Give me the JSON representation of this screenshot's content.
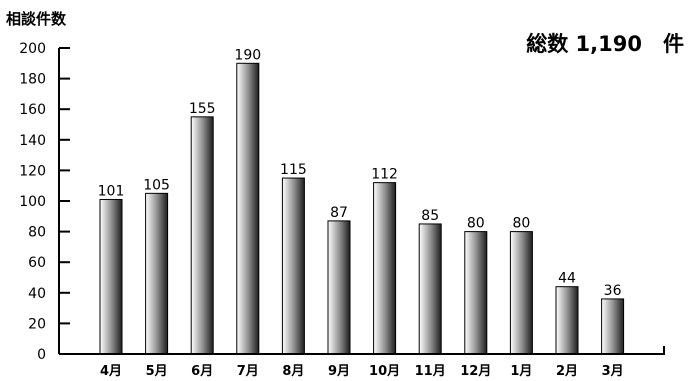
{
  "chart_data": {
    "type": "bar",
    "ylabel": "相談件数",
    "total_text": "総数 1,190　件",
    "categories": [
      "4月",
      "5月",
      "6月",
      "7月",
      "8月",
      "9月",
      "10月",
      "11月",
      "12月",
      "1月",
      "2月",
      "3月"
    ],
    "values": [
      101,
      105,
      155,
      190,
      115,
      87,
      112,
      85,
      80,
      80,
      44,
      36
    ],
    "ylim": [
      0,
      200
    ],
    "yticks": [
      0,
      20,
      40,
      60,
      80,
      100,
      120,
      140,
      160,
      180,
      200
    ],
    "grid": false,
    "legend": "none",
    "bar_gradient": [
      "#ffffff",
      "#8a8a8a",
      "#1e1e1e"
    ]
  }
}
